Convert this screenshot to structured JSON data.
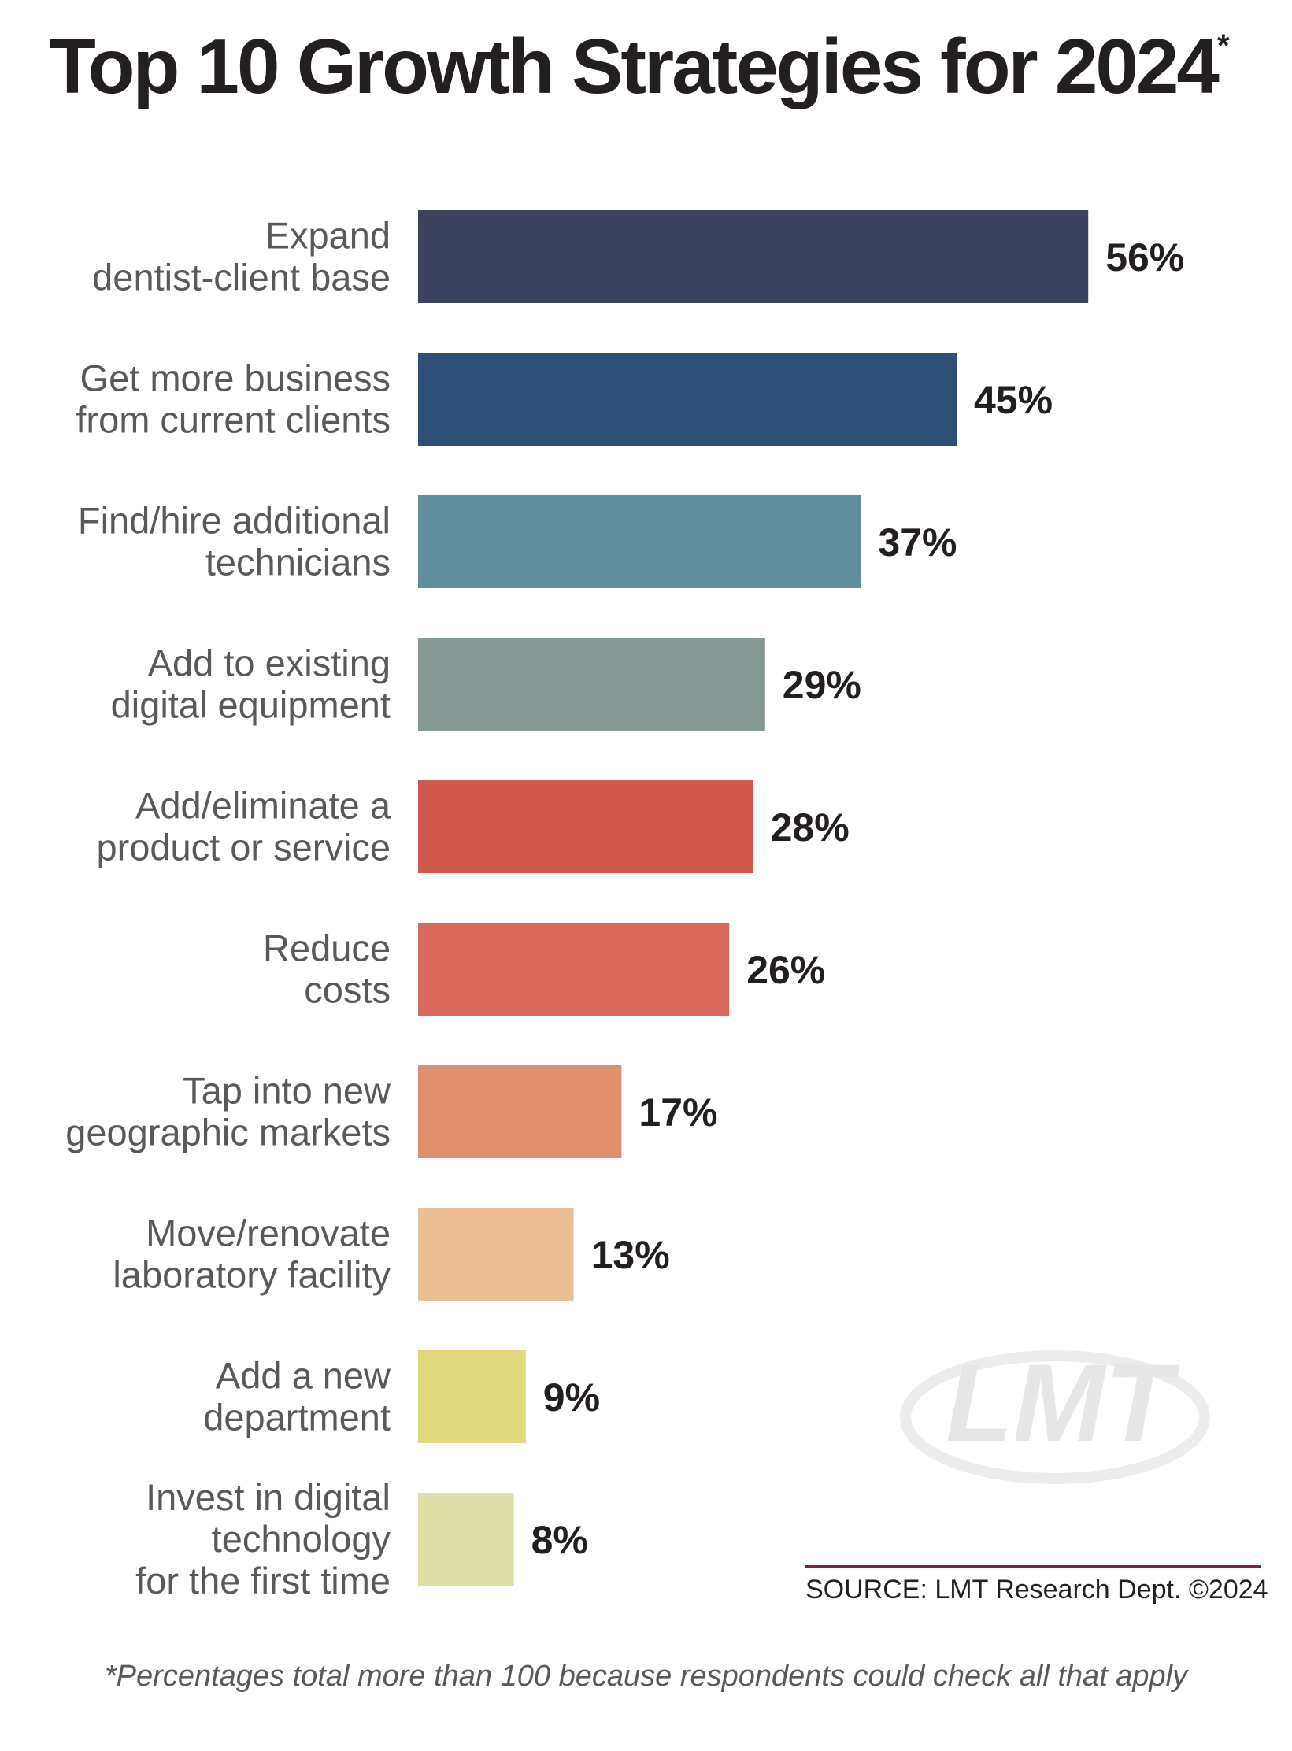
{
  "title": "Top 10 Growth Strategies for 2024",
  "title_mark": "*",
  "chart_data": {
    "type": "bar",
    "orientation": "horizontal",
    "title": "Top 10 Growth Strategies for 2024*",
    "categories": [
      [
        "Expand",
        "dentist-client base"
      ],
      [
        "Get more business",
        "from current clients"
      ],
      [
        "Find/hire additional",
        "technicians"
      ],
      [
        "Add to existing",
        "digital equipment"
      ],
      [
        "Add/eliminate a",
        "product or service"
      ],
      [
        "Reduce",
        "costs"
      ],
      [
        "Tap into new",
        "geographic markets"
      ],
      [
        "Move/renovate",
        "laboratory facility"
      ],
      [
        "Add a new",
        "department"
      ],
      [
        "Invest in digital",
        "technology",
        "for the first time"
      ]
    ],
    "values": [
      56,
      45,
      37,
      29,
      28,
      26,
      17,
      13,
      9,
      8
    ],
    "value_labels": [
      "56%",
      "45%",
      "37%",
      "29%",
      "28%",
      "26%",
      "17%",
      "13%",
      "9%",
      "8%"
    ],
    "unit": "%",
    "colors": [
      "#3c4160",
      "#2e5076",
      "#628d9e",
      "#859894",
      "#d2584e",
      "#d9695c",
      "#df8f6b",
      "#ebbe93",
      "#e0d87a",
      "#dfe0a9"
    ],
    "grid": false,
    "legend": "none"
  },
  "source": "SOURCE: LMT Research Dept. ©2024",
  "footnote": "*Percentages total more than 100 because respondents could check all that apply",
  "logo_text": "LMT"
}
